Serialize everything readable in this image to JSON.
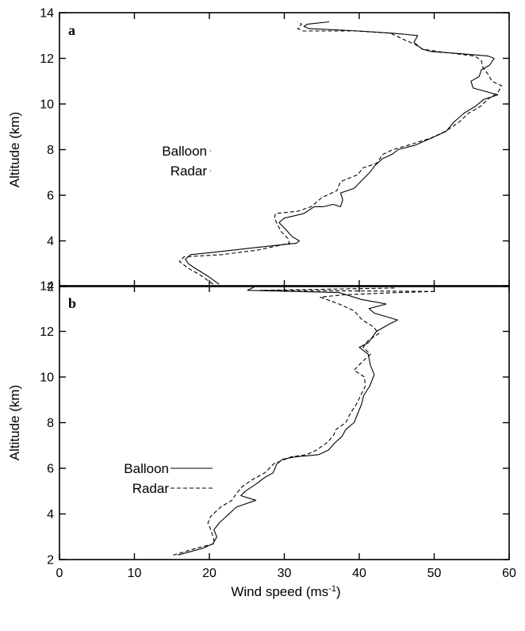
{
  "chart_data": [
    {
      "type": "line",
      "panel_label": "a",
      "xlabel": "",
      "ylabel": "Altitude (km)",
      "xlim": [
        0,
        60
      ],
      "ylim": [
        2,
        14
      ],
      "xticks": [
        0,
        10,
        20,
        30,
        40,
        50,
        60
      ],
      "yticks": [
        2,
        4,
        6,
        8,
        10,
        12,
        14
      ],
      "show_x_tick_labels": false,
      "legend_position": "left-middle",
      "series": [
        {
          "name": "Balloon",
          "style": "solid",
          "points": [
            [
              21.3,
              2.1
            ],
            [
              19.6,
              2.5
            ],
            [
              18.1,
              2.8
            ],
            [
              17.2,
              3.0
            ],
            [
              16.8,
              3.2
            ],
            [
              17.5,
              3.4
            ],
            [
              20.5,
              3.5
            ],
            [
              26,
              3.7
            ],
            [
              31.6,
              3.9
            ],
            [
              32,
              4.0
            ],
            [
              31,
              4.2
            ],
            [
              30.2,
              4.5
            ],
            [
              29.3,
              4.8
            ],
            [
              30,
              5.0
            ],
            [
              32.6,
              5.2
            ],
            [
              34,
              5.5
            ],
            [
              35.2,
              5.5
            ],
            [
              36.5,
              5.6
            ],
            [
              37.5,
              5.5
            ],
            [
              37.8,
              5.8
            ],
            [
              37.5,
              6.1
            ],
            [
              39.3,
              6.3
            ],
            [
              40.2,
              6.6
            ],
            [
              41.4,
              7.0
            ],
            [
              42.1,
              7.3
            ],
            [
              43.1,
              7.6
            ],
            [
              44.4,
              7.8
            ],
            [
              45.2,
              8.0
            ],
            [
              47.5,
              8.2
            ],
            [
              49.6,
              8.5
            ],
            [
              51.6,
              8.8
            ],
            [
              52.6,
              9.2
            ],
            [
              54,
              9.6
            ],
            [
              55.5,
              9.9
            ],
            [
              56.6,
              10.2
            ],
            [
              58.5,
              10.4
            ],
            [
              55.2,
              10.7
            ],
            [
              54.9,
              11.0
            ],
            [
              56,
              11.2
            ],
            [
              56.3,
              11.5
            ],
            [
              57.4,
              11.7
            ],
            [
              58,
              12.0
            ],
            [
              57.2,
              12.1
            ],
            [
              53.8,
              12.2
            ],
            [
              49.6,
              12.3
            ],
            [
              48.4,
              12.4
            ],
            [
              47.3,
              12.7
            ],
            [
              47.8,
              13.0
            ],
            [
              44.6,
              13.1
            ],
            [
              39.9,
              13.2
            ],
            [
              33.3,
              13.3
            ],
            [
              32.6,
              13.4
            ],
            [
              33.1,
              13.5
            ],
            [
              36,
              13.6
            ]
          ]
        },
        {
          "name": "Radar",
          "style": "dashed",
          "points": [
            [
              20.5,
              2.1
            ],
            [
              18.8,
              2.5
            ],
            [
              17.2,
              2.8
            ],
            [
              16,
              3.1
            ],
            [
              16.6,
              3.3
            ],
            [
              21.7,
              3.4
            ],
            [
              26.5,
              3.6
            ],
            [
              30.7,
              3.9
            ],
            [
              30.5,
              4.1
            ],
            [
              29.6,
              4.4
            ],
            [
              29.1,
              4.7
            ],
            [
              28.7,
              5.0
            ],
            [
              28.8,
              5.2
            ],
            [
              31.8,
              5.3
            ],
            [
              33.6,
              5.5
            ],
            [
              35,
              5.9
            ],
            [
              37,
              6.2
            ],
            [
              37.5,
              6.6
            ],
            [
              39.8,
              6.9
            ],
            [
              40.5,
              7.2
            ],
            [
              42.3,
              7.4
            ],
            [
              43.2,
              7.8
            ],
            [
              44.5,
              8.0
            ],
            [
              46.6,
              8.2
            ],
            [
              49.5,
              8.5
            ],
            [
              51.5,
              8.8
            ],
            [
              53.3,
              9.2
            ],
            [
              54.6,
              9.6
            ],
            [
              56.2,
              9.9
            ],
            [
              57.1,
              10.2
            ],
            [
              58.5,
              10.5
            ],
            [
              59,
              10.8
            ],
            [
              57.7,
              11.0
            ],
            [
              57.2,
              11.3
            ],
            [
              56.5,
              11.6
            ],
            [
              56.3,
              11.9
            ],
            [
              55.4,
              12.1
            ],
            [
              50.5,
              12.3
            ],
            [
              48.5,
              12.4
            ],
            [
              47.5,
              12.6
            ],
            [
              46.1,
              12.8
            ],
            [
              44.2,
              13.1
            ],
            [
              39.5,
              13.2
            ],
            [
              32.5,
              13.2
            ],
            [
              31.8,
              13.3
            ],
            [
              32.3,
              13.5
            ],
            [
              31.8,
              13.6
            ]
          ]
        }
      ]
    },
    {
      "type": "line",
      "panel_label": "b",
      "xlabel": "Wind speed (ms",
      "xlabel_sup": "-1",
      "xlabel_close": ")",
      "ylabel": "Altitude (km)",
      "xlim": [
        0,
        60
      ],
      "ylim": [
        2,
        14
      ],
      "xticks": [
        0,
        10,
        20,
        30,
        40,
        50,
        60
      ],
      "yticks": [
        2,
        4,
        6,
        8,
        10,
        12,
        14
      ],
      "show_x_tick_labels": true,
      "legend_position": "left-middle",
      "series": [
        {
          "name": "Balloon",
          "style": "solid",
          "points": [
            [
              15.8,
              2.2
            ],
            [
              19.2,
              2.5
            ],
            [
              20.5,
              2.7
            ],
            [
              21,
              3.0
            ],
            [
              20.6,
              3.3
            ],
            [
              21.3,
              3.6
            ],
            [
              22.3,
              3.9
            ],
            [
              23.6,
              4.3
            ],
            [
              26.2,
              4.6
            ],
            [
              24.2,
              4.8
            ],
            [
              24.8,
              5.0
            ],
            [
              26.2,
              5.3
            ],
            [
              27.4,
              5.6
            ],
            [
              28.5,
              5.8
            ],
            [
              29,
              6.2
            ],
            [
              29.8,
              6.4
            ],
            [
              31.5,
              6.5
            ],
            [
              34.6,
              6.6
            ],
            [
              35.9,
              6.8
            ],
            [
              36.7,
              7.1
            ],
            [
              37.7,
              7.4
            ],
            [
              38.2,
              7.7
            ],
            [
              39.3,
              8.0
            ],
            [
              39.8,
              8.4
            ],
            [
              40.3,
              8.8
            ],
            [
              40.6,
              9.2
            ],
            [
              41.4,
              9.6
            ],
            [
              42,
              10.1
            ],
            [
              41.5,
              10.5
            ],
            [
              41.2,
              11.0
            ],
            [
              40,
              11.3
            ],
            [
              41.2,
              11.5
            ],
            [
              42.3,
              12.0
            ],
            [
              43.9,
              12.3
            ],
            [
              45.1,
              12.5
            ],
            [
              42,
              12.8
            ],
            [
              41.3,
              13.0
            ],
            [
              43.6,
              13.2
            ],
            [
              40.3,
              13.4
            ],
            [
              37.3,
              13.7
            ],
            [
              25.1,
              13.8
            ],
            [
              26.3,
              14.0
            ]
          ]
        },
        {
          "name": "Radar",
          "style": "dashed",
          "points": [
            [
              15.2,
              2.2
            ],
            [
              18.3,
              2.5
            ],
            [
              20.7,
              2.7
            ],
            [
              20.5,
              3.0
            ],
            [
              20.2,
              3.3
            ],
            [
              19.8,
              3.6
            ],
            [
              20.2,
              3.9
            ],
            [
              21.5,
              4.3
            ],
            [
              23,
              4.6
            ],
            [
              23.6,
              4.9
            ],
            [
              24.4,
              5.2
            ],
            [
              25.7,
              5.5
            ],
            [
              27.4,
              5.8
            ],
            [
              28.6,
              6.2
            ],
            [
              30.9,
              6.5
            ],
            [
              33,
              6.6
            ],
            [
              34.3,
              6.8
            ],
            [
              35.6,
              7.1
            ],
            [
              36.5,
              7.4
            ],
            [
              36.9,
              7.7
            ],
            [
              38.2,
              8.0
            ],
            [
              38.8,
              8.4
            ],
            [
              39.6,
              8.8
            ],
            [
              40.2,
              9.2
            ],
            [
              40.8,
              9.6
            ],
            [
              40.7,
              10.0
            ],
            [
              39.3,
              10.3
            ],
            [
              40.5,
              10.7
            ],
            [
              41.5,
              11.0
            ],
            [
              40.5,
              11.3
            ],
            [
              41.2,
              11.6
            ],
            [
              42.6,
              11.9
            ],
            [
              41.9,
              12.2
            ],
            [
              40.4,
              12.5
            ],
            [
              39.3,
              12.9
            ],
            [
              37.3,
              13.2
            ],
            [
              34.8,
              13.5
            ],
            [
              37.8,
              13.6
            ],
            [
              45,
              13.7
            ],
            [
              50.2,
              13.75
            ],
            [
              26.8,
              13.8
            ],
            [
              44.7,
              13.9
            ]
          ]
        }
      ]
    }
  ]
}
